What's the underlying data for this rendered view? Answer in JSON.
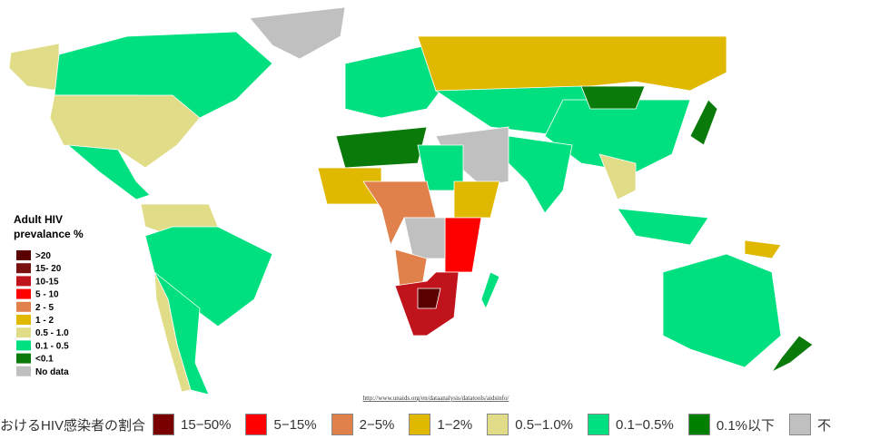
{
  "map": {
    "legend": {
      "title_lines": [
        "Adult HIV",
        "prevalance %"
      ],
      "items": [
        {
          "label": ">20",
          "color": "#5a0000"
        },
        {
          "label": "15- 20",
          "color": "#7a1010"
        },
        {
          "label": "10-15",
          "color": "#c0131c"
        },
        {
          "label": "5 - 10",
          "color": "#ff0000"
        },
        {
          "label": "2 - 5",
          "color": "#e0804a"
        },
        {
          "label": "1 - 2",
          "color": "#e0b800"
        },
        {
          "label": "0.5 - 1.0",
          "color": "#e0dc88"
        },
        {
          "label": "0.1 - 0.5",
          "color": "#00e080"
        },
        {
          "label": "<0.1",
          "color": "#0a7a0a"
        },
        {
          "label": "No data",
          "color": "#c0c0c0"
        }
      ]
    },
    "source": "http://www.unaids.org/en/dataanalysis/datatools/aidsinfo/"
  },
  "bottom_legend": {
    "caption": "おけるHIV感染者の割合",
    "items": [
      {
        "label": "15−50%",
        "color": "#7a0000"
      },
      {
        "label": "5−15%",
        "color": "#ff0000"
      },
      {
        "label": "2−5%",
        "color": "#e0804a"
      },
      {
        "label": "1−2%",
        "color": "#e0b800"
      },
      {
        "label": "0.5−1.0%",
        "color": "#e0dc88"
      },
      {
        "label": "0.1−0.5%",
        "color": "#00e080"
      },
      {
        "label": "0.1%以下",
        "color": "#008000"
      },
      {
        "label": "不",
        "color": "#c0c0c0"
      }
    ]
  }
}
